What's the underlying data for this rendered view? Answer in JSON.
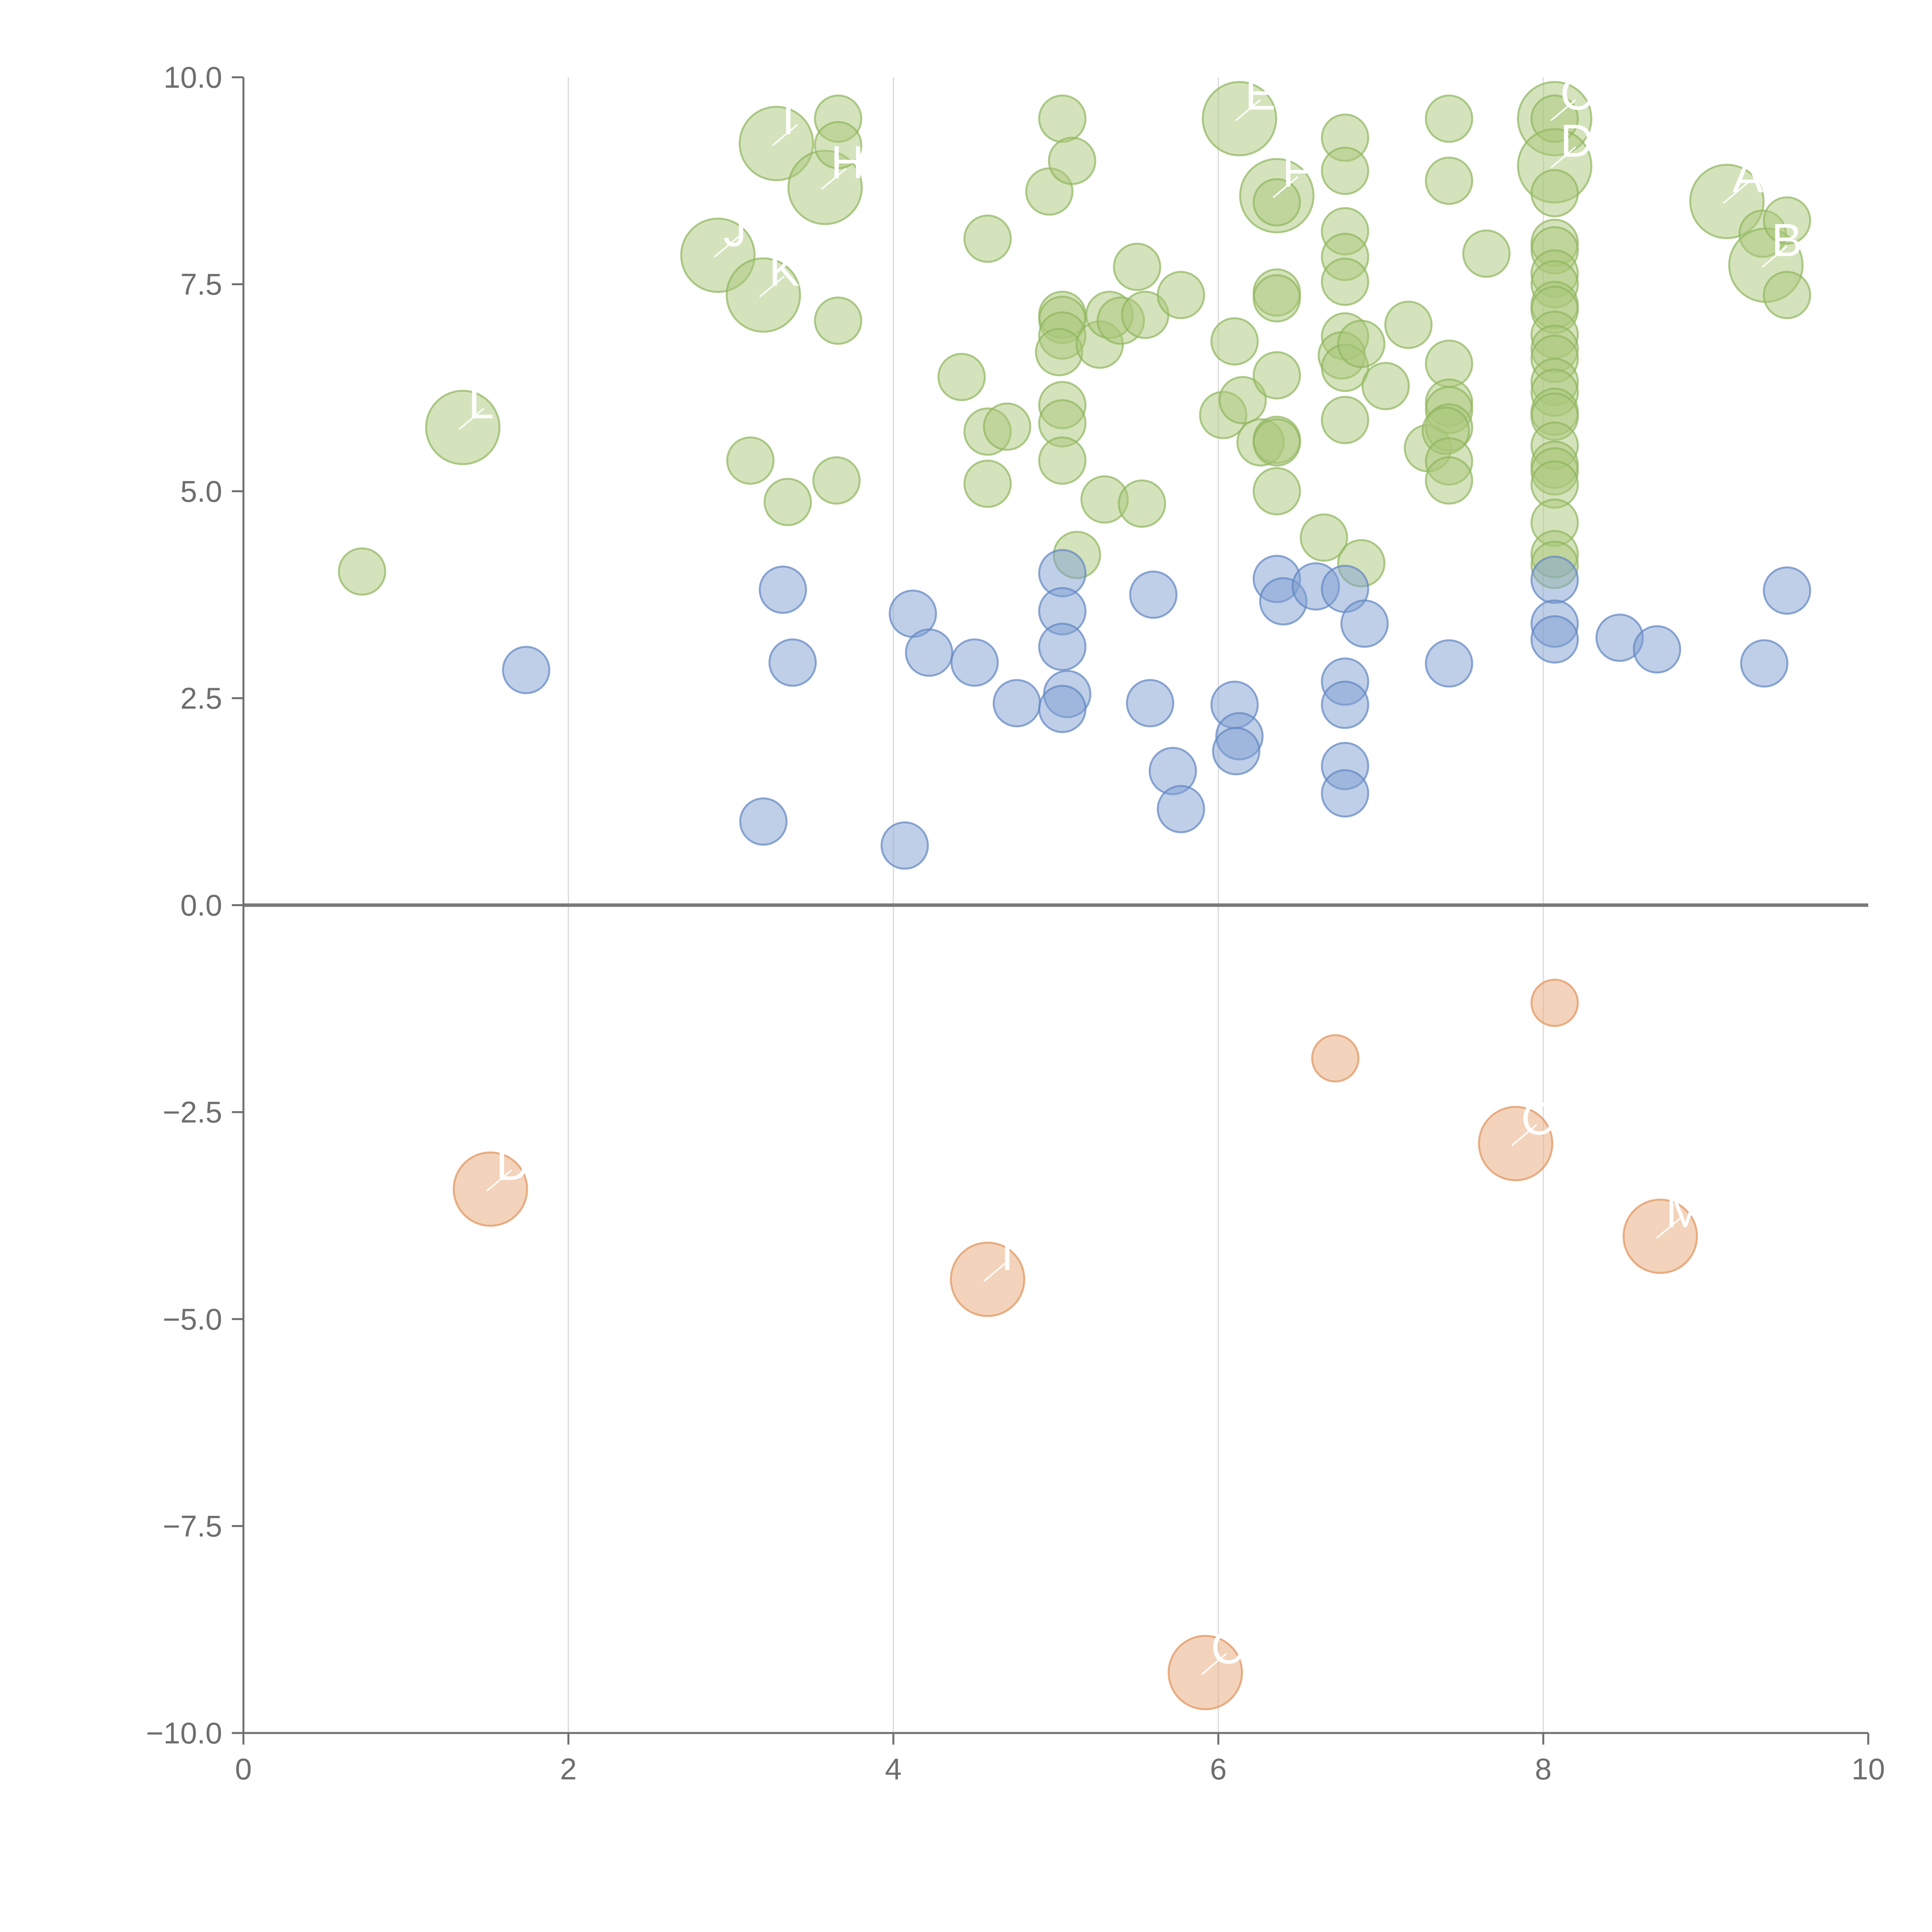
{
  "chart_data": {
    "type": "scatter",
    "subtype": "bubble",
    "title": "",
    "xlabel": "",
    "ylabel": "",
    "xlim": [
      0,
      10
    ],
    "ylim": [
      -10,
      10
    ],
    "x_ticks": [
      0,
      2,
      4,
      6,
      8,
      10
    ],
    "x_tick_labels": [
      "0",
      "2",
      "4",
      "6",
      "8",
      "10"
    ],
    "y_ticks": [
      10,
      7.5,
      5,
      2.5,
      0,
      -2.5,
      -5,
      -7.5,
      -10
    ],
    "y_tick_labels": [
      "10.0",
      "7.5",
      "5.0",
      "2.5",
      "0.0",
      "−2.5",
      "−5.0",
      "−7.5",
      "−10.0"
    ],
    "vertical_grid": true,
    "zero_line": true,
    "colors": {
      "group_high": {
        "fill": "#a9c77a",
        "stroke": "#8fb55c"
      },
      "group_mid": {
        "fill": "#7f9fd1",
        "stroke": "#5f84c2"
      },
      "group_negative": {
        "fill": "#e8a877",
        "stroke": "#e0915a"
      }
    },
    "series": [
      {
        "name": "group_high",
        "color_key": "group_high",
        "points": [
          {
            "x": 0.73,
            "y": 4.03,
            "size": 1
          },
          {
            "x": 1.35,
            "y": 5.77,
            "size": 3,
            "label": "L"
          },
          {
            "x": 2.92,
            "y": 7.85,
            "size": 3,
            "label": "J"
          },
          {
            "x": 3.12,
            "y": 5.37,
            "size": 1
          },
          {
            "x": 3.2,
            "y": 7.37,
            "size": 3,
            "label": "K"
          },
          {
            "x": 3.28,
            "y": 9.2,
            "size": 3,
            "label": "I"
          },
          {
            "x": 3.35,
            "y": 4.87,
            "size": 1
          },
          {
            "x": 3.58,
            "y": 8.67,
            "size": 3,
            "label": "H"
          },
          {
            "x": 3.65,
            "y": 5.13,
            "size": 1
          },
          {
            "x": 3.66,
            "y": 9.5,
            "size": 1
          },
          {
            "x": 3.66,
            "y": 9.18,
            "size": 1
          },
          {
            "x": 3.66,
            "y": 7.06,
            "size": 1
          },
          {
            "x": 4.42,
            "y": 6.38,
            "size": 1
          },
          {
            "x": 4.58,
            "y": 8.05,
            "size": 1
          },
          {
            "x": 4.58,
            "y": 5.72,
            "size": 1
          },
          {
            "x": 4.58,
            "y": 5.09,
            "size": 1
          },
          {
            "x": 4.7,
            "y": 5.78,
            "size": 1
          },
          {
            "x": 4.96,
            "y": 8.62,
            "size": 1
          },
          {
            "x": 5.04,
            "y": 9.5,
            "size": 1
          },
          {
            "x": 5.04,
            "y": 7.13,
            "size": 1
          },
          {
            "x": 5.04,
            "y": 7.07,
            "size": 1
          },
          {
            "x": 5.04,
            "y": 6.88,
            "size": 1
          },
          {
            "x": 5.02,
            "y": 6.68,
            "size": 1
          },
          {
            "x": 5.04,
            "y": 6.04,
            "size": 1
          },
          {
            "x": 5.04,
            "y": 5.82,
            "size": 1
          },
          {
            "x": 5.04,
            "y": 5.37,
            "size": 1
          },
          {
            "x": 5.1,
            "y": 8.99,
            "size": 1
          },
          {
            "x": 5.13,
            "y": 4.23,
            "size": 1
          },
          {
            "x": 5.27,
            "y": 6.77,
            "size": 1
          },
          {
            "x": 5.3,
            "y": 4.9,
            "size": 1
          },
          {
            "x": 5.33,
            "y": 7.13,
            "size": 1
          },
          {
            "x": 5.4,
            "y": 7.06,
            "size": 1
          },
          {
            "x": 5.5,
            "y": 7.71,
            "size": 1
          },
          {
            "x": 5.53,
            "y": 4.85,
            "size": 1
          },
          {
            "x": 5.55,
            "y": 7.13,
            "size": 1
          },
          {
            "x": 5.77,
            "y": 7.37,
            "size": 1
          },
          {
            "x": 6.03,
            "y": 5.92,
            "size": 1
          },
          {
            "x": 6.1,
            "y": 6.81,
            "size": 1
          },
          {
            "x": 6.15,
            "y": 6.1,
            "size": 1
          },
          {
            "x": 6.13,
            "y": 9.5,
            "size": 3,
            "label": "E"
          },
          {
            "x": 6.26,
            "y": 5.59,
            "size": 1
          },
          {
            "x": 6.36,
            "y": 8.57,
            "size": 3,
            "label": "F"
          },
          {
            "x": 6.36,
            "y": 8.49,
            "size": 1
          },
          {
            "x": 6.36,
            "y": 7.4,
            "size": 1
          },
          {
            "x": 6.36,
            "y": 7.33,
            "size": 1
          },
          {
            "x": 6.36,
            "y": 6.4,
            "size": 1
          },
          {
            "x": 6.36,
            "y": 5.62,
            "size": 1
          },
          {
            "x": 6.36,
            "y": 5.59,
            "size": 1
          },
          {
            "x": 6.36,
            "y": 5.0,
            "size": 1
          },
          {
            "x": 6.65,
            "y": 4.44,
            "size": 1
          },
          {
            "x": 6.78,
            "y": 9.27,
            "size": 1
          },
          {
            "x": 6.78,
            "y": 8.87,
            "size": 1
          },
          {
            "x": 6.78,
            "y": 8.14,
            "size": 1
          },
          {
            "x": 6.78,
            "y": 7.83,
            "size": 1
          },
          {
            "x": 6.78,
            "y": 7.53,
            "size": 1
          },
          {
            "x": 6.78,
            "y": 6.87,
            "size": 1
          },
          {
            "x": 6.76,
            "y": 6.64,
            "size": 1
          },
          {
            "x": 6.78,
            "y": 6.49,
            "size": 1
          },
          {
            "x": 6.78,
            "y": 5.86,
            "size": 1
          },
          {
            "x": 6.88,
            "y": 6.78,
            "size": 1
          },
          {
            "x": 6.88,
            "y": 4.13,
            "size": 1
          },
          {
            "x": 7.03,
            "y": 6.27,
            "size": 1
          },
          {
            "x": 7.17,
            "y": 7.01,
            "size": 1
          },
          {
            "x": 7.29,
            "y": 5.52,
            "size": 1
          },
          {
            "x": 7.42,
            "y": 9.5,
            "size": 1
          },
          {
            "x": 7.42,
            "y": 8.75,
            "size": 1
          },
          {
            "x": 7.42,
            "y": 6.54,
            "size": 1
          },
          {
            "x": 7.42,
            "y": 6.07,
            "size": 1
          },
          {
            "x": 7.42,
            "y": 5.98,
            "size": 1
          },
          {
            "x": 7.42,
            "y": 5.77,
            "size": 1
          },
          {
            "x": 7.4,
            "y": 5.73,
            "size": 1
          },
          {
            "x": 7.42,
            "y": 5.36,
            "size": 1
          },
          {
            "x": 7.42,
            "y": 5.13,
            "size": 1
          },
          {
            "x": 7.65,
            "y": 7.87,
            "size": 1
          },
          {
            "x": 8.07,
            "y": 9.5,
            "size": 3,
            "label": "C"
          },
          {
            "x": 8.07,
            "y": 9.5,
            "size": 1
          },
          {
            "x": 8.07,
            "y": 8.93,
            "size": 3,
            "label": "D"
          },
          {
            "x": 8.07,
            "y": 8.6,
            "size": 1
          },
          {
            "x": 8.07,
            "y": 8.0,
            "size": 1
          },
          {
            "x": 8.07,
            "y": 7.91,
            "size": 1
          },
          {
            "x": 8.07,
            "y": 7.63,
            "size": 1
          },
          {
            "x": 8.07,
            "y": 7.5,
            "size": 1
          },
          {
            "x": 8.07,
            "y": 7.25,
            "size": 1
          },
          {
            "x": 8.07,
            "y": 7.19,
            "size": 1
          },
          {
            "x": 8.07,
            "y": 6.89,
            "size": 1
          },
          {
            "x": 8.07,
            "y": 6.72,
            "size": 1
          },
          {
            "x": 8.07,
            "y": 6.6,
            "size": 1
          },
          {
            "x": 8.07,
            "y": 6.32,
            "size": 1
          },
          {
            "x": 8.07,
            "y": 6.19,
            "size": 1
          },
          {
            "x": 8.07,
            "y": 5.96,
            "size": 1
          },
          {
            "x": 8.07,
            "y": 5.9,
            "size": 1
          },
          {
            "x": 8.07,
            "y": 5.55,
            "size": 1
          },
          {
            "x": 8.07,
            "y": 5.32,
            "size": 1
          },
          {
            "x": 8.07,
            "y": 5.24,
            "size": 1
          },
          {
            "x": 8.07,
            "y": 5.08,
            "size": 1
          },
          {
            "x": 8.07,
            "y": 4.62,
            "size": 1
          },
          {
            "x": 8.07,
            "y": 4.24,
            "size": 1
          },
          {
            "x": 8.07,
            "y": 4.11,
            "size": 1
          },
          {
            "x": 9.13,
            "y": 8.5,
            "size": 3,
            "label": "A"
          },
          {
            "x": 9.35,
            "y": 8.11,
            "size": 1
          },
          {
            "x": 9.37,
            "y": 7.73,
            "size": 3,
            "label": "B"
          },
          {
            "x": 9.5,
            "y": 8.27,
            "size": 1
          },
          {
            "x": 9.5,
            "y": 7.37,
            "size": 1
          }
        ]
      },
      {
        "name": "group_mid",
        "color_key": "group_mid",
        "points": [
          {
            "x": 1.74,
            "y": 2.84,
            "size": 1
          },
          {
            "x": 3.2,
            "y": 1.01,
            "size": 1
          },
          {
            "x": 3.32,
            "y": 3.81,
            "size": 1
          },
          {
            "x": 3.38,
            "y": 2.93,
            "size": 1
          },
          {
            "x": 4.07,
            "y": 0.72,
            "size": 1
          },
          {
            "x": 4.12,
            "y": 3.52,
            "size": 1
          },
          {
            "x": 4.22,
            "y": 3.05,
            "size": 1
          },
          {
            "x": 4.5,
            "y": 2.93,
            "size": 1
          },
          {
            "x": 4.76,
            "y": 2.44,
            "size": 1
          },
          {
            "x": 5.04,
            "y": 4.01,
            "size": 1
          },
          {
            "x": 5.04,
            "y": 3.55,
            "size": 1
          },
          {
            "x": 5.04,
            "y": 3.12,
            "size": 1
          },
          {
            "x": 5.07,
            "y": 2.55,
            "size": 1
          },
          {
            "x": 5.04,
            "y": 2.37,
            "size": 1
          },
          {
            "x": 5.6,
            "y": 3.75,
            "size": 1
          },
          {
            "x": 5.58,
            "y": 2.44,
            "size": 1
          },
          {
            "x": 5.72,
            "y": 1.62,
            "size": 1
          },
          {
            "x": 5.77,
            "y": 1.16,
            "size": 1
          },
          {
            "x": 6.1,
            "y": 2.42,
            "size": 1
          },
          {
            "x": 6.13,
            "y": 2.04,
            "size": 1
          },
          {
            "x": 6.11,
            "y": 1.86,
            "size": 1
          },
          {
            "x": 6.36,
            "y": 3.94,
            "size": 1
          },
          {
            "x": 6.4,
            "y": 3.67,
            "size": 1
          },
          {
            "x": 6.6,
            "y": 3.85,
            "size": 1
          },
          {
            "x": 6.78,
            "y": 3.82,
            "size": 1
          },
          {
            "x": 6.78,
            "y": 2.7,
            "size": 1
          },
          {
            "x": 6.78,
            "y": 2.42,
            "size": 1
          },
          {
            "x": 6.78,
            "y": 1.68,
            "size": 1
          },
          {
            "x": 6.78,
            "y": 1.35,
            "size": 1
          },
          {
            "x": 6.9,
            "y": 3.4,
            "size": 1
          },
          {
            "x": 7.42,
            "y": 2.92,
            "size": 1
          },
          {
            "x": 8.07,
            "y": 3.93,
            "size": 1
          },
          {
            "x": 8.07,
            "y": 3.4,
            "size": 1
          },
          {
            "x": 8.07,
            "y": 3.21,
            "size": 1
          },
          {
            "x": 8.47,
            "y": 3.23,
            "size": 1
          },
          {
            "x": 8.7,
            "y": 3.09,
            "size": 1
          },
          {
            "x": 9.36,
            "y": 2.92,
            "size": 1
          },
          {
            "x": 9.5,
            "y": 3.8,
            "size": 1
          }
        ]
      },
      {
        "name": "group_negative",
        "color_key": "group_negative",
        "points": [
          {
            "x": 1.52,
            "y": -3.43,
            "size": 3,
            "label": "D"
          },
          {
            "x": 4.58,
            "y": -4.52,
            "size": 3,
            "label": "T"
          },
          {
            "x": 5.92,
            "y": -9.27,
            "size": 3,
            "label": "C"
          },
          {
            "x": 6.72,
            "y": -1.85,
            "size": 1
          },
          {
            "x": 7.83,
            "y": -2.88,
            "size": 3,
            "label": "O"
          },
          {
            "x": 8.07,
            "y": -1.18,
            "size": 1
          },
          {
            "x": 8.72,
            "y": -4.0,
            "size": 3,
            "label": "M"
          }
        ]
      }
    ]
  }
}
